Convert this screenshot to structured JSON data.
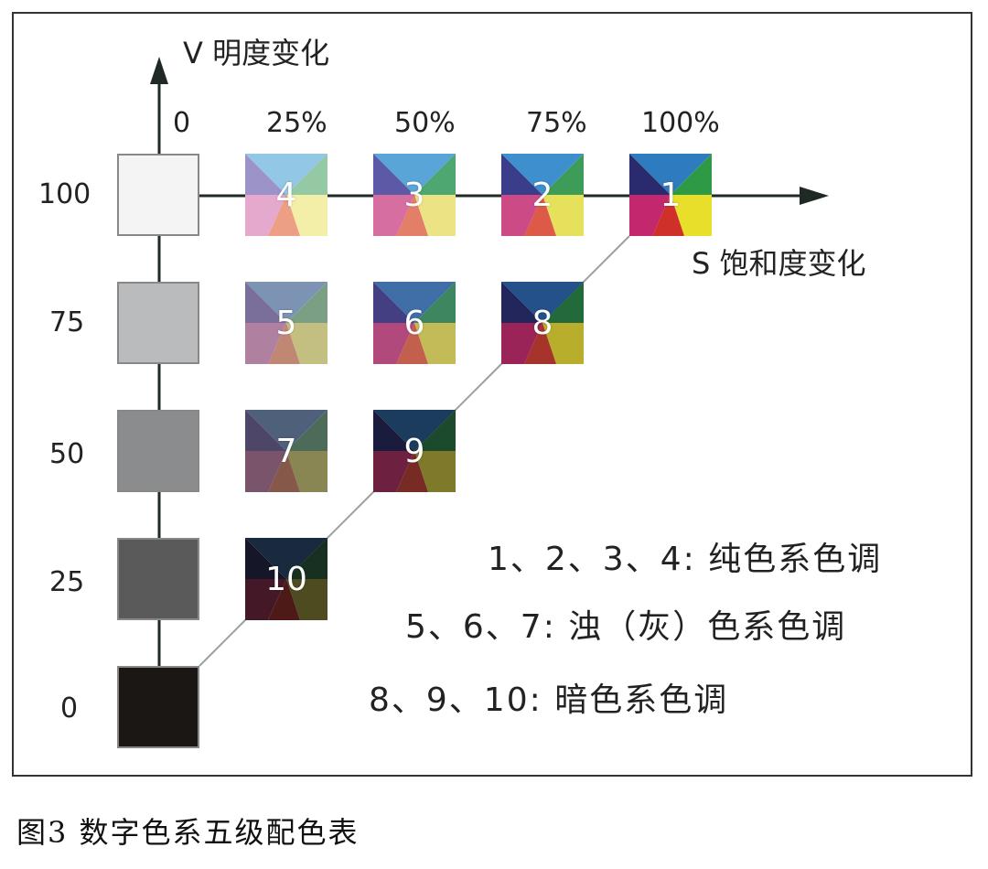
{
  "diagram": {
    "v_axis_label": "V 明度变化",
    "s_axis_label": "S 饱和度变化",
    "saturation_ticks": [
      "0",
      "25%",
      "50%",
      "75%",
      "100%"
    ],
    "value_ticks": [
      "100",
      "75",
      "50",
      "25",
      "0"
    ],
    "gray_scale": [
      {
        "level": "100",
        "color": "#f4f4f4"
      },
      {
        "level": "75",
        "color": "#b9bbbd"
      },
      {
        "level": "50",
        "color": "#8a8c8e"
      },
      {
        "level": "25",
        "color": "#5a5a5a"
      },
      {
        "level": "0",
        "color": "#1b1715"
      }
    ],
    "tiles": [
      {
        "number": "1",
        "saturation": "100%",
        "value": "100",
        "colors": {
          "top": "#2e7bbf",
          "right": "#2f9a45",
          "bottom_right": "#e8df2a",
          "bottom": "#d0302a",
          "bottom_left": "#c3286e",
          "left": "#2a2a6e"
        }
      },
      {
        "number": "2",
        "saturation": "75%",
        "value": "100",
        "colors": {
          "top": "#3e8fcd",
          "right": "#3d9c58",
          "bottom_right": "#e6e15a",
          "bottom": "#de5a48",
          "bottom_left": "#cc4b86",
          "left": "#3a3d8a"
        }
      },
      {
        "number": "3",
        "saturation": "50%",
        "value": "100",
        "colors": {
          "top": "#5aa5d8",
          "right": "#4ea670",
          "bottom_right": "#ece484",
          "bottom": "#e37e67",
          "bottom_left": "#d66ea2",
          "left": "#5c5aa6"
        }
      },
      {
        "number": "4",
        "saturation": "25%",
        "value": "100",
        "colors": {
          "top": "#92c8e6",
          "right": "#94c9a4",
          "bottom_right": "#f3eea8",
          "bottom": "#ec9f85",
          "bottom_left": "#e4a9cc",
          "left": "#9c93c8"
        }
      },
      {
        "number": "5",
        "saturation": "25%",
        "value": "75",
        "colors": {
          "top": "#7d93b3",
          "right": "#7b9f85",
          "bottom_right": "#c3bf80",
          "bottom": "#c08872",
          "bottom_left": "#b080a0",
          "left": "#7a6f9a"
        }
      },
      {
        "number": "6",
        "saturation": "50%",
        "value": "75",
        "colors": {
          "top": "#3f6fa6",
          "right": "#3d8660",
          "bottom_right": "#c2bb57",
          "bottom": "#c2604d",
          "bottom_left": "#b1497c",
          "left": "#443f82"
        }
      },
      {
        "number": "8",
        "saturation": "75%",
        "value": "75",
        "colors": {
          "top": "#24518a",
          "right": "#226a3a",
          "bottom_right": "#b8ae2c",
          "bottom": "#a6342b",
          "bottom_left": "#9a2458",
          "left": "#22265a"
        }
      },
      {
        "number": "7",
        "saturation": "25%",
        "value": "50",
        "colors": {
          "top": "#4f607a",
          "right": "#4c6b58",
          "bottom_right": "#8a8654",
          "bottom": "#86584a",
          "bottom_left": "#7a546a",
          "left": "#4d4668"
        }
      },
      {
        "number": "9",
        "saturation": "50%",
        "value": "50",
        "colors": {
          "top": "#1c3c5e",
          "right": "#1b4a2c",
          "bottom_right": "#7e7a2a",
          "bottom": "#782a24",
          "bottom_left": "#6e2040",
          "left": "#1a1c3e"
        }
      },
      {
        "number": "10",
        "saturation": "25%",
        "value": "25",
        "colors": {
          "top": "#1a2a3e",
          "right": "#18301f",
          "bottom_right": "#4e4b20",
          "bottom": "#4d1a18",
          "bottom_left": "#451828",
          "left": "#151628"
        }
      }
    ],
    "legend": [
      "1、2、3、4: 纯色系色调",
      "5、6、7: 浊（灰）色系色调",
      "8、9、10: 暗色系色调"
    ],
    "line_color": "#1f2a24",
    "diagonal_color": "#9aa0a0"
  },
  "caption": "图3  数字色系五级配色表"
}
